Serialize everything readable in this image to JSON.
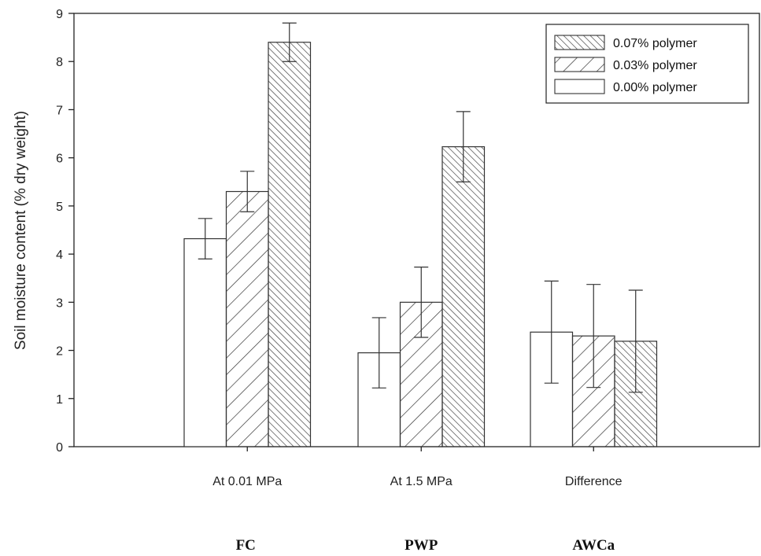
{
  "chart_data": {
    "type": "bar",
    "ylabel": "Soil moisture content (% dry weight)",
    "ylim": [
      0,
      9
    ],
    "yticks": [
      "0",
      "1",
      "2",
      "3",
      "4",
      "5",
      "6",
      "7",
      "8",
      "9"
    ],
    "categories": [
      "At 0.01 MPa",
      "At 1.5 MPa",
      "Difference"
    ],
    "group_labels": [
      "FC",
      "PWP",
      "AWCa"
    ],
    "series": [
      {
        "name": "0.00% polymer",
        "pattern": "none",
        "values": [
          4.32,
          1.95,
          2.38
        ],
        "errors": [
          0.42,
          0.73,
          1.06
        ]
      },
      {
        "name": "0.03% polymer",
        "pattern": "wide-diagonal",
        "values": [
          5.3,
          3.0,
          2.3
        ],
        "errors": [
          0.42,
          0.73,
          1.07
        ]
      },
      {
        "name": "0.07% polymer",
        "pattern": "dense-diagonal",
        "values": [
          8.4,
          6.23,
          2.19
        ],
        "errors": [
          0.4,
          0.73,
          1.06
        ]
      }
    ],
    "legend": {
      "position": "top-right",
      "order": [
        "0.07% polymer",
        "0.03% polymer",
        "0.00% polymer"
      ]
    },
    "grid": false
  },
  "colors": {
    "axis": "#222222",
    "bar_stroke": "#333333",
    "fill": "#ffffff"
  }
}
